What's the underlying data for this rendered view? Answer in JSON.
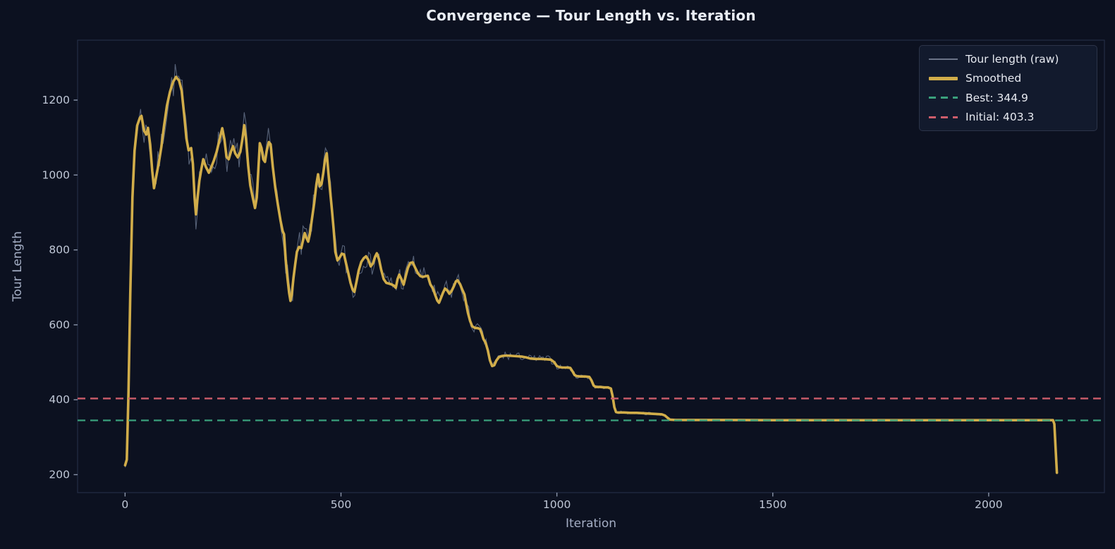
{
  "chart_data": {
    "type": "line",
    "title": "Convergence — Tour Length vs. Iteration",
    "xlabel": "Iteration",
    "ylabel": "Tour Length",
    "xlim": [
      -110,
      2268
    ],
    "ylim": [
      152,
      1360
    ],
    "xticks": [
      0,
      500,
      1000,
      1500,
      2000
    ],
    "yticks": [
      200,
      400,
      600,
      800,
      1000,
      1200
    ],
    "grid": false,
    "legend": {
      "position": "upper-right",
      "entries": [
        {
          "key": "raw",
          "label": "Tour length (raw)",
          "swatch": "thin-line",
          "color": "#6b7488"
        },
        {
          "key": "smoothed",
          "label": "Smoothed",
          "swatch": "thick-line",
          "color": "#d1ad4a"
        },
        {
          "key": "best",
          "label": "Best: 344.9",
          "swatch": "dashed-line",
          "color": "#3aa17c"
        },
        {
          "key": "initial",
          "label": "Initial: 403.3",
          "swatch": "dashed-line",
          "color": "#cd5d6b"
        }
      ]
    },
    "reference_lines": [
      {
        "name": "best",
        "value": 344.9,
        "color": "#3aa17c",
        "style": "dashed",
        "width": 2.3,
        "dash": [
          11,
          7
        ]
      },
      {
        "name": "initial",
        "value": 403.3,
        "color": "#cd5d6b",
        "style": "dashed",
        "width": 2.3,
        "dash": [
          11,
          7
        ]
      }
    ],
    "series": [
      {
        "name": "Tour length (raw)",
        "color": "#5b667c",
        "width": 1.1,
        "opacity": 0.95,
        "derivation": "smoothed series plus uniform noise (visual overlay of per-iteration raw tour length)",
        "noise_seed": 7,
        "noise_step": 4,
        "noise_segments": [
          [
            0,
            14,
            6
          ],
          [
            14,
            120,
            46
          ],
          [
            120,
            250,
            42
          ],
          [
            250,
            360,
            44
          ],
          [
            360,
            430,
            40
          ],
          [
            430,
            520,
            38
          ],
          [
            520,
            650,
            30
          ],
          [
            650,
            800,
            26
          ],
          [
            800,
            900,
            14
          ],
          [
            900,
            1000,
            10
          ],
          [
            1000,
            1100,
            7
          ],
          [
            1100,
            1265,
            4
          ],
          [
            1265,
            2158,
            0
          ]
        ]
      },
      {
        "name": "Smoothed",
        "color": "#d1ad4a",
        "width": 3.6,
        "points": [
          [
            0,
            225
          ],
          [
            4,
            240
          ],
          [
            8,
            420
          ],
          [
            12,
            680
          ],
          [
            17,
            940
          ],
          [
            22,
            1065
          ],
          [
            28,
            1132
          ],
          [
            34,
            1152
          ],
          [
            38,
            1158
          ],
          [
            44,
            1118
          ],
          [
            49,
            1108
          ],
          [
            53,
            1126
          ],
          [
            58,
            1082
          ],
          [
            63,
            1010
          ],
          [
            67,
            965
          ],
          [
            72,
            995
          ],
          [
            78,
            1032
          ],
          [
            84,
            1075
          ],
          [
            90,
            1130
          ],
          [
            97,
            1185
          ],
          [
            104,
            1222
          ],
          [
            111,
            1248
          ],
          [
            118,
            1262
          ],
          [
            125,
            1252
          ],
          [
            131,
            1225
          ],
          [
            137,
            1160
          ],
          [
            142,
            1098
          ],
          [
            147,
            1066
          ],
          [
            153,
            1072
          ],
          [
            157,
            1030
          ],
          [
            161,
            940
          ],
          [
            164,
            895
          ],
          [
            168,
            940
          ],
          [
            172,
            985
          ],
          [
            177,
            1018
          ],
          [
            181,
            1042
          ],
          [
            187,
            1022
          ],
          [
            194,
            1006
          ],
          [
            200,
            1022
          ],
          [
            206,
            1040
          ],
          [
            212,
            1062
          ],
          [
            219,
            1095
          ],
          [
            225,
            1125
          ],
          [
            230,
            1095
          ],
          [
            235,
            1048
          ],
          [
            240,
            1042
          ],
          [
            245,
            1062
          ],
          [
            250,
            1077
          ],
          [
            255,
            1058
          ],
          [
            261,
            1047
          ],
          [
            267,
            1062
          ],
          [
            272,
            1098
          ],
          [
            276,
            1133
          ],
          [
            280,
            1098
          ],
          [
            285,
            1025
          ],
          [
            290,
            972
          ],
          [
            296,
            938
          ],
          [
            301,
            912
          ],
          [
            305,
            940
          ],
          [
            309,
            1020
          ],
          [
            312,
            1085
          ],
          [
            316,
            1072
          ],
          [
            320,
            1042
          ],
          [
            324,
            1035
          ],
          [
            328,
            1065
          ],
          [
            333,
            1088
          ],
          [
            337,
            1082
          ],
          [
            342,
            1022
          ],
          [
            348,
            965
          ],
          [
            354,
            920
          ],
          [
            360,
            878
          ],
          [
            365,
            850
          ],
          [
            368,
            842
          ],
          [
            372,
            775
          ],
          [
            376,
            725
          ],
          [
            380,
            685
          ],
          [
            383,
            664
          ],
          [
            386,
            680
          ],
          [
            390,
            725
          ],
          [
            394,
            762
          ],
          [
            398,
            795
          ],
          [
            403,
            808
          ],
          [
            408,
            805
          ],
          [
            412,
            825
          ],
          [
            416,
            845
          ],
          [
            420,
            832
          ],
          [
            424,
            822
          ],
          [
            428,
            843
          ],
          [
            433,
            885
          ],
          [
            438,
            925
          ],
          [
            443,
            975
          ],
          [
            447,
            1002
          ],
          [
            451,
            970
          ],
          [
            455,
            976
          ],
          [
            459,
            1005
          ],
          [
            463,
            1040
          ],
          [
            467,
            1058
          ],
          [
            471,
            1005
          ],
          [
            475,
            955
          ],
          [
            479,
            908
          ],
          [
            483,
            855
          ],
          [
            487,
            795
          ],
          [
            492,
            772
          ],
          [
            497,
            780
          ],
          [
            502,
            790
          ],
          [
            507,
            788
          ],
          [
            512,
            763
          ],
          [
            517,
            738
          ],
          [
            522,
            712
          ],
          [
            527,
            694
          ],
          [
            531,
            688
          ],
          [
            536,
            715
          ],
          [
            541,
            745
          ],
          [
            547,
            768
          ],
          [
            553,
            778
          ],
          [
            558,
            783
          ],
          [
            563,
            774
          ],
          [
            569,
            756
          ],
          [
            574,
            764
          ],
          [
            579,
            782
          ],
          [
            583,
            791
          ],
          [
            588,
            775
          ],
          [
            593,
            748
          ],
          [
            599,
            722
          ],
          [
            605,
            712
          ],
          [
            611,
            710
          ],
          [
            617,
            708
          ],
          [
            623,
            704
          ],
          [
            627,
            699
          ],
          [
            631,
            722
          ],
          [
            635,
            734
          ],
          [
            640,
            722
          ],
          [
            645,
            707
          ],
          [
            650,
            730
          ],
          [
            655,
            752
          ],
          [
            660,
            765
          ],
          [
            666,
            767
          ],
          [
            672,
            752
          ],
          [
            678,
            738
          ],
          [
            684,
            730
          ],
          [
            690,
            728
          ],
          [
            696,
            730
          ],
          [
            701,
            731
          ],
          [
            707,
            708
          ],
          [
            713,
            697
          ],
          [
            718,
            680
          ],
          [
            723,
            665
          ],
          [
            727,
            659
          ],
          [
            731,
            670
          ],
          [
            736,
            685
          ],
          [
            741,
            697
          ],
          [
            746,
            692
          ],
          [
            751,
            683
          ],
          [
            756,
            690
          ],
          [
            761,
            702
          ],
          [
            766,
            716
          ],
          [
            770,
            719
          ],
          [
            776,
            708
          ],
          [
            781,
            694
          ],
          [
            786,
            681
          ],
          [
            790,
            655
          ],
          [
            794,
            632
          ],
          [
            799,
            610
          ],
          [
            804,
            596
          ],
          [
            810,
            592
          ],
          [
            817,
            591
          ],
          [
            822,
            589
          ],
          [
            826,
            577
          ],
          [
            830,
            562
          ],
          [
            835,
            552
          ],
          [
            840,
            532
          ],
          [
            845,
            505
          ],
          [
            850,
            490
          ],
          [
            855,
            492
          ],
          [
            860,
            505
          ],
          [
            866,
            514
          ],
          [
            874,
            517
          ],
          [
            884,
            518
          ],
          [
            896,
            517
          ],
          [
            908,
            516
          ],
          [
            920,
            515
          ],
          [
            929,
            513
          ],
          [
            938,
            510
          ],
          [
            950,
            509
          ],
          [
            963,
            509
          ],
          [
            976,
            508
          ],
          [
            986,
            507
          ],
          [
            994,
            500
          ],
          [
            1000,
            490
          ],
          [
            1006,
            487
          ],
          [
            1014,
            486
          ],
          [
            1023,
            486
          ],
          [
            1031,
            485
          ],
          [
            1036,
            476
          ],
          [
            1041,
            466
          ],
          [
            1046,
            463
          ],
          [
            1055,
            462
          ],
          [
            1065,
            462
          ],
          [
            1075,
            461
          ],
          [
            1080,
            452
          ],
          [
            1085,
            438
          ],
          [
            1090,
            434
          ],
          [
            1100,
            434
          ],
          [
            1110,
            433
          ],
          [
            1118,
            433
          ],
          [
            1125,
            430
          ],
          [
            1129,
            410
          ],
          [
            1133,
            380
          ],
          [
            1137,
            367
          ],
          [
            1144,
            366
          ],
          [
            1155,
            366
          ],
          [
            1170,
            365
          ],
          [
            1185,
            365
          ],
          [
            1200,
            364
          ],
          [
            1215,
            363
          ],
          [
            1230,
            362
          ],
          [
            1243,
            361
          ],
          [
            1250,
            358
          ],
          [
            1256,
            352
          ],
          [
            1262,
            347
          ],
          [
            1275,
            346
          ],
          [
            1320,
            346
          ],
          [
            1400,
            346
          ],
          [
            1500,
            345.5
          ],
          [
            1650,
            345.5
          ],
          [
            1800,
            345.5
          ],
          [
            1950,
            345.5
          ],
          [
            2060,
            345.5
          ],
          [
            2130,
            345.5
          ],
          [
            2149,
            345.5
          ],
          [
            2152,
            335
          ],
          [
            2155,
            270
          ],
          [
            2158,
            205
          ]
        ]
      }
    ],
    "stats": {
      "best_value": 344.9,
      "initial_value": 403.3,
      "final_raw_value": 205,
      "start_value": 225,
      "peak_value": 1262,
      "peak_iteration": 118,
      "last_iteration": 2158
    },
    "colors": {
      "background": "#0c1120",
      "axes_frame": "#232b42",
      "tick_mark": "#8b95aa",
      "tick_label": "#bfc7d6",
      "axis_label": "#a4aec4",
      "title": "#e9edf4",
      "legend_bg": "#121a2d",
      "legend_border": "#2c3449",
      "legend_text": "#e7eaf1",
      "raw_line": "#5b667c",
      "smoothed_line": "#d1ad4a",
      "best_line": "#3aa17c",
      "initial_line": "#cd5d6b"
    }
  }
}
